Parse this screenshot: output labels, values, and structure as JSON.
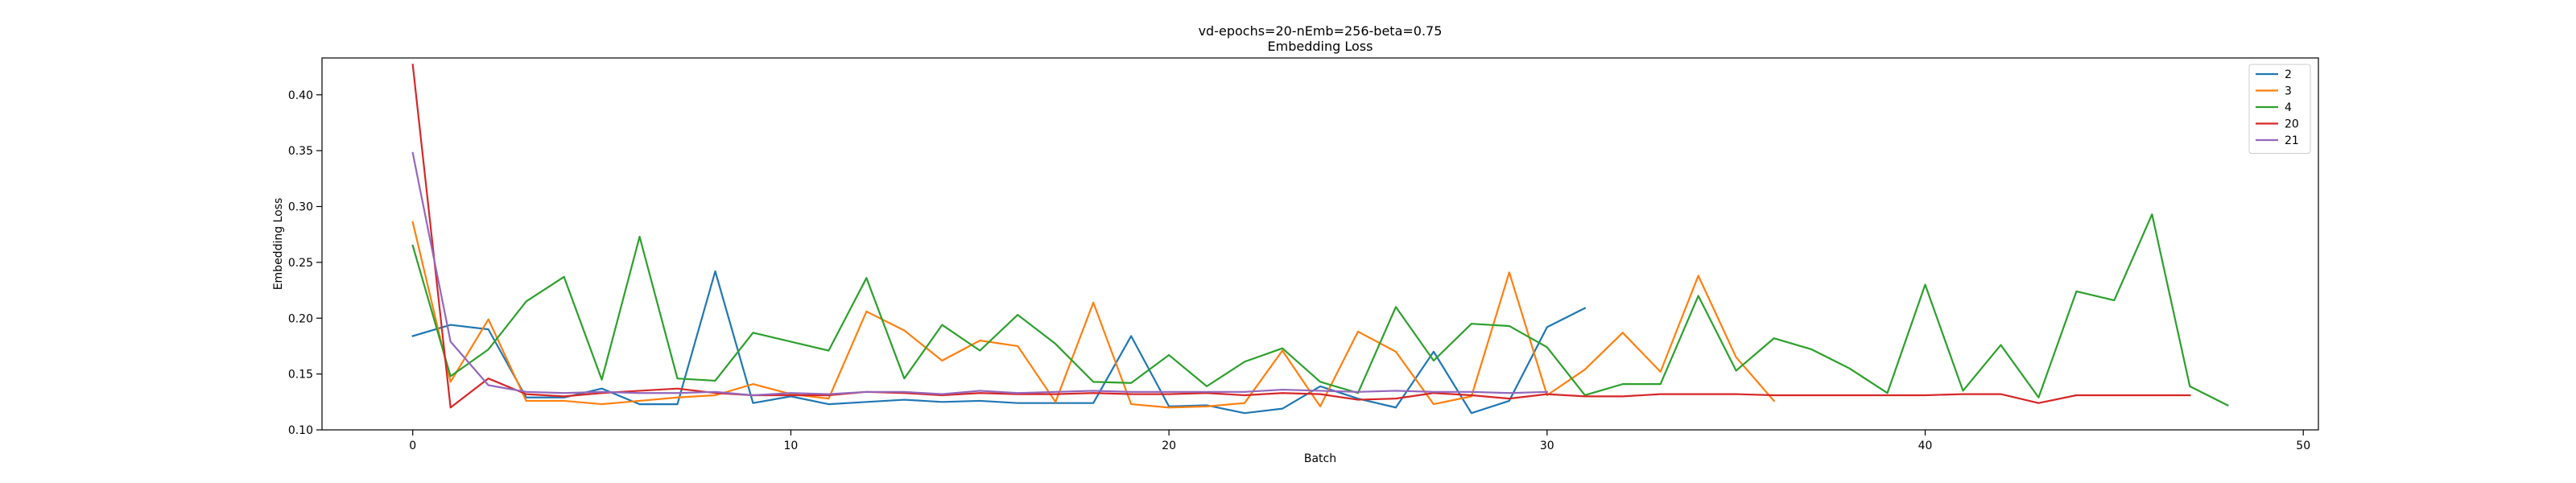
{
  "chart_data": {
    "type": "line",
    "title": "vd-epochs=20-nEmb=256-beta=0.75",
    "subtitle": "Embedding Loss",
    "xlabel": "Batch",
    "ylabel": "Embedding Loss",
    "xlim": [
      -2.4,
      50.4
    ],
    "ylim": [
      0.1,
      0.433
    ],
    "xticks": [
      0,
      10,
      20,
      30,
      40,
      50
    ],
    "yticks": [
      0.1,
      0.15,
      0.2,
      0.25,
      0.3,
      0.35,
      0.4
    ],
    "xtick_labels": [
      "0",
      "10",
      "20",
      "30",
      "40",
      "50"
    ],
    "ytick_labels": [
      "0.10",
      "0.15",
      "0.20",
      "0.25",
      "0.30",
      "0.35",
      "0.40"
    ],
    "grid": false,
    "legend_position": "top-right",
    "series": [
      {
        "name": "2",
        "color": "#1f77b4",
        "x": [
          0,
          1,
          2,
          3,
          4,
          5,
          6,
          7,
          8,
          9,
          10,
          11,
          12,
          13,
          14,
          15,
          16,
          17,
          18,
          19,
          20,
          21,
          22,
          23,
          24,
          25,
          26,
          27,
          28,
          29,
          30,
          31
        ],
        "values": [
          0.184,
          0.194,
          0.19,
          0.129,
          0.129,
          0.137,
          0.123,
          0.123,
          0.242,
          0.124,
          0.13,
          0.123,
          0.125,
          0.127,
          0.125,
          0.126,
          0.124,
          0.124,
          0.124,
          0.184,
          0.121,
          0.122,
          0.115,
          0.119,
          0.139,
          0.128,
          0.12,
          0.17,
          0.115,
          0.126,
          0.192,
          0.209
        ]
      },
      {
        "name": "3",
        "color": "#ff7f0e",
        "x": [
          0,
          1,
          2,
          3,
          4,
          5,
          6,
          7,
          8,
          9,
          10,
          11,
          12,
          13,
          14,
          15,
          16,
          17,
          18,
          19,
          20,
          21,
          22,
          23,
          24,
          25,
          26,
          27,
          28,
          29,
          30,
          31,
          32,
          33,
          34,
          35,
          36
        ],
        "values": [
          0.286,
          0.143,
          0.199,
          0.126,
          0.126,
          0.123,
          0.126,
          0.129,
          0.131,
          0.141,
          0.132,
          0.128,
          0.206,
          0.189,
          0.162,
          0.18,
          0.175,
          0.125,
          0.214,
          0.123,
          0.12,
          0.121,
          0.124,
          0.171,
          0.121,
          0.188,
          0.17,
          0.123,
          0.13,
          0.241,
          0.131,
          0.154,
          0.187,
          0.152,
          0.238,
          0.165,
          0.126
        ]
      },
      {
        "name": "4",
        "color": "#2ca02c",
        "x": [
          0,
          1,
          2,
          3,
          4,
          5,
          6,
          7,
          8,
          9,
          10,
          11,
          12,
          13,
          14,
          15,
          16,
          17,
          18,
          19,
          20,
          21,
          22,
          23,
          24,
          25,
          26,
          27,
          28,
          29,
          30,
          31,
          32,
          33,
          34,
          35,
          36,
          37,
          38,
          39,
          40,
          41,
          42,
          43,
          44,
          45,
          46,
          47,
          48
        ],
        "values": [
          0.265,
          0.148,
          0.172,
          0.215,
          0.237,
          0.145,
          0.273,
          0.146,
          0.144,
          0.187,
          0.179,
          0.171,
          0.236,
          0.146,
          0.194,
          0.171,
          0.203,
          0.177,
          0.143,
          0.142,
          0.167,
          0.139,
          0.161,
          0.173,
          0.143,
          0.133,
          0.21,
          0.162,
          0.195,
          0.193,
          0.174,
          0.131,
          0.141,
          0.141,
          0.22,
          0.153,
          0.182,
          0.172,
          0.155,
          0.133,
          0.23,
          0.135,
          0.176,
          0.129,
          0.224,
          0.216,
          0.293,
          0.139,
          0.122
        ]
      },
      {
        "name": "20",
        "color": "#d62728",
        "x": [
          0,
          1,
          2,
          3,
          4,
          5,
          6,
          7,
          8,
          9,
          10,
          11,
          12,
          13,
          14,
          15,
          16,
          17,
          18,
          19,
          20,
          21,
          22,
          23,
          24,
          25,
          26,
          27,
          28,
          29,
          30,
          31,
          32,
          33,
          34,
          35,
          36,
          37,
          38,
          39,
          40,
          41,
          42,
          43,
          44,
          45,
          46,
          47
        ],
        "values": [
          0.427,
          0.12,
          0.146,
          0.132,
          0.13,
          0.133,
          0.135,
          0.137,
          0.133,
          0.131,
          0.131,
          0.131,
          0.134,
          0.133,
          0.131,
          0.133,
          0.132,
          0.132,
          0.133,
          0.132,
          0.132,
          0.133,
          0.131,
          0.133,
          0.132,
          0.127,
          0.128,
          0.133,
          0.131,
          0.128,
          0.132,
          0.13,
          0.13,
          0.132,
          0.132,
          0.132,
          0.131,
          0.131,
          0.131,
          0.131,
          0.131,
          0.132,
          0.132,
          0.124,
          0.131,
          0.131,
          0.131,
          0.131
        ]
      },
      {
        "name": "21",
        "color": "#9467bd",
        "x": [
          0,
          1,
          2,
          3,
          4,
          5,
          6,
          7,
          8,
          9,
          10,
          11,
          12,
          13,
          14,
          15,
          16,
          17,
          18,
          19,
          20,
          21,
          22,
          23,
          24,
          25,
          26,
          27,
          28,
          29,
          30
        ],
        "values": [
          0.348,
          0.179,
          0.14,
          0.134,
          0.133,
          0.134,
          0.133,
          0.133,
          0.134,
          0.131,
          0.133,
          0.132,
          0.134,
          0.134,
          0.132,
          0.135,
          0.133,
          0.134,
          0.135,
          0.134,
          0.134,
          0.134,
          0.134,
          0.136,
          0.135,
          0.134,
          0.135,
          0.134,
          0.134,
          0.133,
          0.134
        ]
      }
    ]
  }
}
